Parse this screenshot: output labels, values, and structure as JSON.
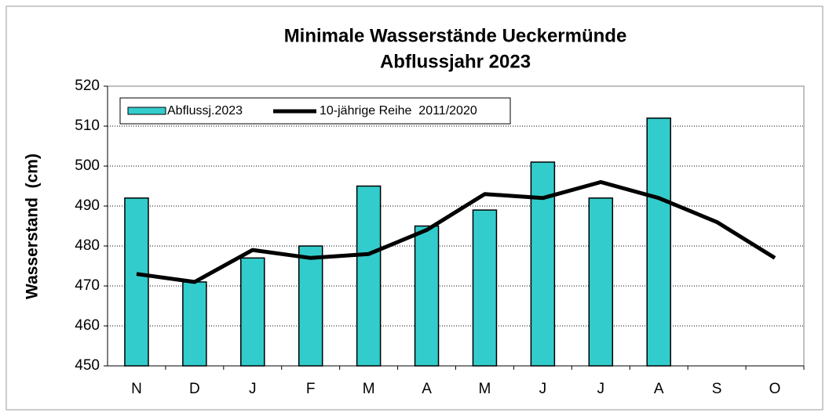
{
  "chart_data": {
    "type": "bar",
    "title": [
      "Minimale Wasserstände Ueckermünde",
      "Abflussjahr 2023"
    ],
    "y_label": "Wasserstand  (cm)",
    "categories": [
      "N",
      "D",
      "J",
      "F",
      "M",
      "A",
      "M",
      "J",
      "J",
      "A",
      "S",
      "O"
    ],
    "series": [
      {
        "name": "Abflussj.2023",
        "type": "bar",
        "color": "#33cccc",
        "values": [
          492,
          471,
          477,
          480,
          495,
          485,
          489,
          501,
          492,
          512,
          null,
          null
        ]
      },
      {
        "name": "10-jährige Reihe  2011/2020",
        "type": "line",
        "color": "#000000",
        "values": [
          473,
          471,
          479,
          477,
          478,
          484,
          493,
          492,
          496,
          492,
          486,
          477
        ]
      }
    ],
    "ylim": [
      450,
      520
    ],
    "yticks": [
      450,
      460,
      470,
      480,
      490,
      500,
      510,
      520
    ],
    "grid": true,
    "legend": "top-left"
  }
}
